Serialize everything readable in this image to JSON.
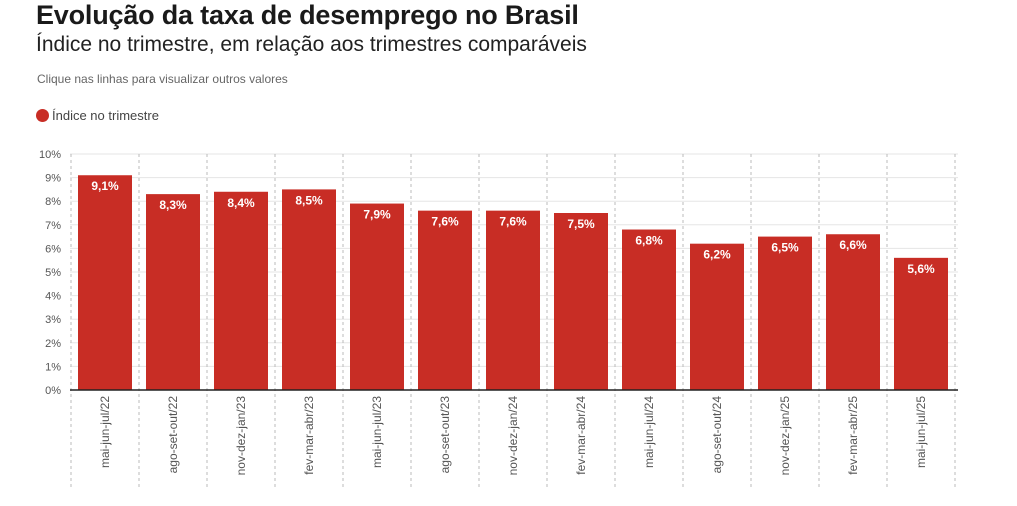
{
  "header": {
    "title": "Evolução da taxa de desemprego no Brasil",
    "subtitle": "Índice no trimestre, em relação aos trimestres comparáveis",
    "hint": "Clique nas linhas para visualizar outros valores"
  },
  "legend": {
    "label": "Índice no trimestre",
    "color": "#c82d25"
  },
  "colors": {
    "bar": "#c82d25",
    "grid": "#e5e5e5",
    "axis": "#222222",
    "separator": "#bbbbbb"
  },
  "chart_data": {
    "type": "bar",
    "title": "Evolução da taxa de desemprego no Brasil",
    "subtitle": "Índice no trimestre, em relação aos trimestres comparáveis",
    "categories": [
      "mai-jun-jul/22",
      "ago-set-out/22",
      "nov-dez-jan/23",
      "fev-mar-abr/23",
      "mai-jun-jul/23",
      "ago-set-out/23",
      "nov-dez-jan/24",
      "fev-mar-abr/24",
      "mai-jun-jul/24",
      "ago-set-out/24",
      "nov-dez-jan/25",
      "fev-mar-abr/25",
      "mai-jun-jul/25"
    ],
    "series": [
      {
        "name": "Índice no trimestre",
        "values": [
          9.1,
          8.3,
          8.4,
          8.5,
          7.9,
          7.6,
          7.6,
          7.5,
          6.8,
          6.2,
          6.5,
          6.6,
          5.6
        ],
        "labels": [
          "9,1%",
          "8,3%",
          "8,4%",
          "8,5%",
          "7,9%",
          "7,6%",
          "7,6%",
          "7,5%",
          "6,8%",
          "6,2%",
          "6,5%",
          "6,6%",
          "5,6%"
        ]
      }
    ],
    "yticks": [
      "0%",
      "1%",
      "2%",
      "3%",
      "4%",
      "5%",
      "6%",
      "7%",
      "8%",
      "9%",
      "10%"
    ],
    "ylim": [
      0,
      10
    ],
    "grid": true,
    "legend_position": "top-left"
  }
}
